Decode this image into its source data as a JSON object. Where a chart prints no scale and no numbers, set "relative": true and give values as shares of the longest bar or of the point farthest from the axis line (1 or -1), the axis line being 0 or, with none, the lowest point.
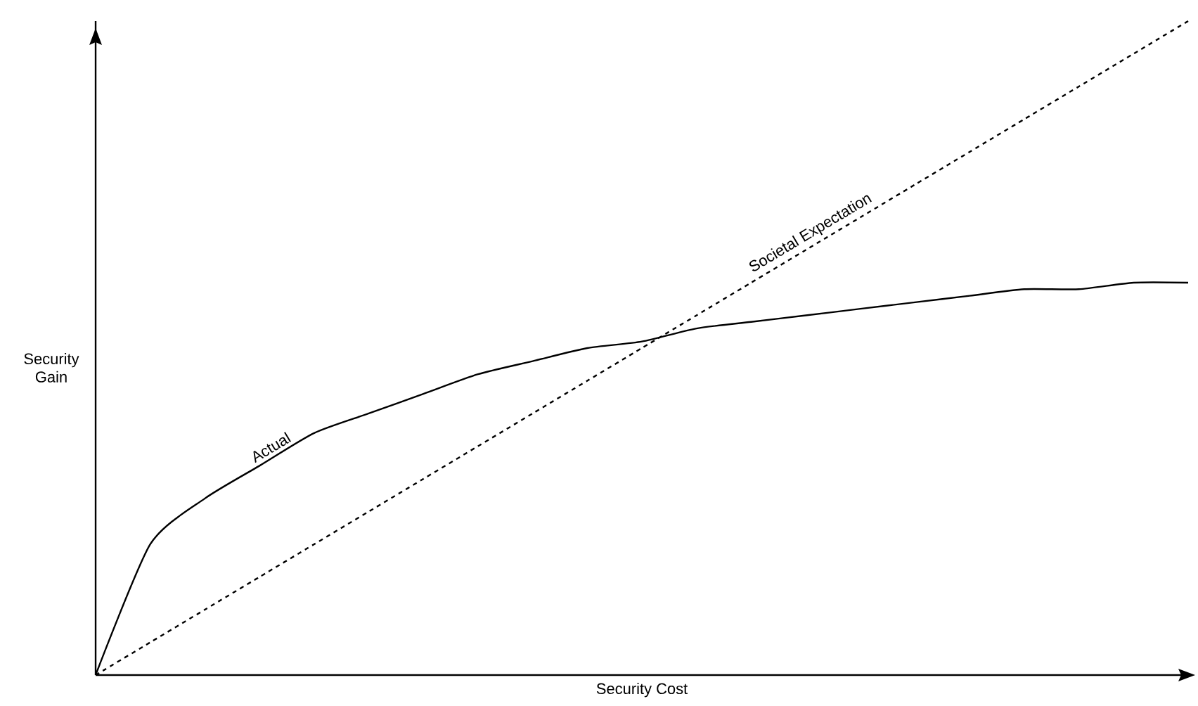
{
  "chart_data": {
    "type": "line",
    "relative": true,
    "xlabel": "Security Cost",
    "ylabel": "Security Gain",
    "categories": [
      null,
      null,
      null,
      null,
      null,
      null,
      null,
      null,
      null,
      null,
      null,
      null,
      null,
      null,
      null,
      null,
      null,
      null,
      null,
      null,
      null
    ],
    "series": [
      {
        "name": "Actual",
        "color": "#000000",
        "line_style": "solid",
        "values": [
          0,
          0.2,
          0.27,
          0.32,
          0.37,
          0.4,
          0.43,
          0.46,
          0.48,
          0.5,
          0.51,
          0.53,
          0.54,
          0.55,
          0.56,
          0.57,
          0.58,
          0.59,
          0.59,
          0.6,
          0.6
        ]
      },
      {
        "name": "Societal Expectation",
        "color": "#000000",
        "line_style": "dashed",
        "values": [
          0,
          0.05,
          0.1,
          0.15,
          0.2,
          0.25,
          0.3,
          0.35,
          0.4,
          0.45,
          0.5,
          0.55,
          0.6,
          0.65,
          0.7,
          0.75,
          0.8,
          0.85,
          0.9,
          0.95,
          1
        ]
      }
    ]
  }
}
